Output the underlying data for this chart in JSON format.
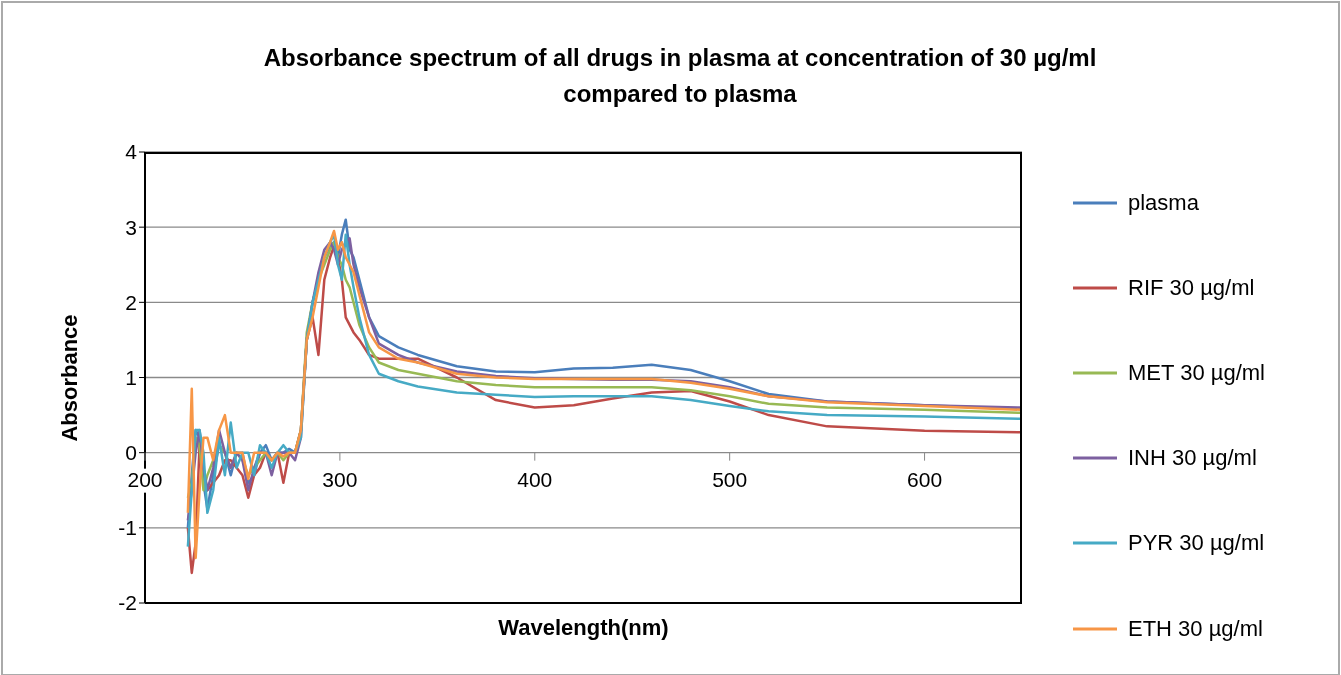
{
  "chart_data": {
    "type": "line",
    "title": "Absorbance spectrum of all drugs in plasma at concentration of 30 µg/ml compared to plasma",
    "xlabel": "Wavelength(nm)",
    "ylabel": "Absorbance",
    "x": [
      222,
      224,
      226,
      228,
      230,
      232,
      235,
      238,
      241,
      244,
      247,
      250,
      253,
      256,
      259,
      262,
      265,
      268,
      271,
      274,
      277,
      280,
      283,
      286,
      289,
      292,
      295,
      297,
      299,
      301,
      303,
      305,
      307,
      310,
      315,
      320,
      330,
      340,
      360,
      380,
      400,
      420,
      440,
      460,
      480,
      500,
      520,
      550,
      600,
      650
    ],
    "xlim": [
      200,
      650
    ],
    "xticks": [
      200,
      300,
      400,
      500,
      600
    ],
    "ylim": [
      -2,
      4
    ],
    "yticks": [
      -2,
      -1,
      0,
      1,
      2,
      3,
      4
    ],
    "grid": "y",
    "legend": "right",
    "marker": "none",
    "line_style": "solid",
    "series": [
      {
        "name": "plasma",
        "color": "#4a7ebb",
        "values": [
          -1.0,
          -0.3,
          0.3,
          0.2,
          -0.4,
          -0.75,
          -0.3,
          0.1,
          0.0,
          -0.3,
          0.0,
          0.0,
          -0.4,
          -0.3,
          0.0,
          0.1,
          -0.1,
          0.0,
          0.0,
          0.05,
          0.0,
          0.3,
          1.5,
          2.0,
          2.3,
          2.6,
          2.75,
          2.8,
          2.6,
          2.9,
          3.1,
          2.7,
          2.6,
          2.3,
          1.8,
          1.55,
          1.4,
          1.3,
          1.15,
          1.08,
          1.07,
          1.12,
          1.13,
          1.17,
          1.1,
          0.95,
          0.78,
          0.68,
          0.63,
          0.58
        ]
      },
      {
        "name": "RIF 30 µg/ml",
        "color": "#be4b48",
        "values": [
          -1.0,
          -1.6,
          -1.2,
          0.1,
          -0.2,
          -0.5,
          -0.4,
          -0.3,
          -0.1,
          -0.1,
          -0.2,
          -0.3,
          -0.6,
          -0.3,
          -0.2,
          0.0,
          -0.1,
          0.0,
          -0.4,
          0.0,
          0.0,
          0.3,
          1.5,
          1.8,
          1.3,
          2.3,
          2.6,
          2.75,
          2.6,
          2.3,
          1.8,
          1.7,
          1.6,
          1.5,
          1.3,
          1.25,
          1.25,
          1.25,
          1.0,
          0.7,
          0.6,
          0.63,
          0.72,
          0.8,
          0.82,
          0.68,
          0.5,
          0.35,
          0.29,
          0.27
        ]
      },
      {
        "name": "MET 30 µg/ml",
        "color": "#98b954",
        "values": [
          -0.6,
          -0.4,
          0.2,
          0.1,
          -0.5,
          -0.3,
          -0.1,
          0.1,
          0.0,
          -0.2,
          0.0,
          -0.1,
          -0.3,
          -0.2,
          -0.1,
          0.0,
          -0.1,
          0.0,
          -0.1,
          0.0,
          0.0,
          0.3,
          1.6,
          2.0,
          2.3,
          2.5,
          2.7,
          2.8,
          2.6,
          2.5,
          2.3,
          2.2,
          2.0,
          1.7,
          1.4,
          1.2,
          1.1,
          1.05,
          0.95,
          0.9,
          0.87,
          0.87,
          0.87,
          0.87,
          0.83,
          0.75,
          0.65,
          0.6,
          0.57,
          0.53
        ]
      },
      {
        "name": "INH 30 µg/ml",
        "color": "#7d60a0",
        "values": [
          -0.9,
          -0.5,
          0.0,
          0.3,
          -0.2,
          -0.5,
          -0.2,
          0.3,
          0.0,
          -0.2,
          0.0,
          -0.1,
          -0.5,
          -0.2,
          0.0,
          0.0,
          -0.3,
          0.0,
          0.0,
          0.0,
          -0.1,
          0.2,
          1.5,
          2.0,
          2.4,
          2.7,
          2.8,
          2.7,
          2.5,
          2.7,
          2.8,
          2.85,
          2.5,
          2.2,
          1.8,
          1.45,
          1.3,
          1.2,
          1.08,
          1.02,
          0.99,
          0.98,
          0.97,
          0.97,
          0.95,
          0.87,
          0.75,
          0.68,
          0.63,
          0.6
        ]
      },
      {
        "name": "PYR 30 µg/ml",
        "color": "#46aac5",
        "values": [
          -1.25,
          -0.5,
          0.3,
          0.3,
          0.0,
          -0.8,
          -0.5,
          0.2,
          -0.3,
          0.4,
          -0.2,
          0.0,
          0.0,
          -0.3,
          0.1,
          0.0,
          -0.2,
          0.0,
          0.1,
          0.0,
          0.0,
          0.2,
          1.5,
          2.0,
          2.3,
          2.6,
          2.8,
          2.9,
          2.5,
          2.3,
          2.9,
          2.5,
          2.2,
          1.8,
          1.3,
          1.05,
          0.95,
          0.88,
          0.8,
          0.77,
          0.74,
          0.75,
          0.75,
          0.75,
          0.7,
          0.62,
          0.55,
          0.5,
          0.48,
          0.45
        ]
      },
      {
        "name": "ETH 30 µg/ml",
        "color": "#f79646",
        "values": [
          -0.8,
          0.85,
          -1.4,
          -0.5,
          0.2,
          0.2,
          -0.1,
          0.3,
          0.5,
          0.0,
          0.0,
          0.0,
          -0.35,
          0.0,
          0.0,
          0.0,
          -0.1,
          0.0,
          -0.05,
          0.0,
          0.0,
          0.3,
          1.5,
          1.8,
          2.2,
          2.6,
          2.8,
          2.95,
          2.7,
          2.8,
          2.6,
          2.5,
          2.4,
          2.1,
          1.6,
          1.4,
          1.25,
          1.2,
          1.05,
          1.0,
          0.98,
          0.98,
          0.98,
          0.98,
          0.93,
          0.85,
          0.75,
          0.67,
          0.62,
          0.57
        ]
      }
    ]
  }
}
